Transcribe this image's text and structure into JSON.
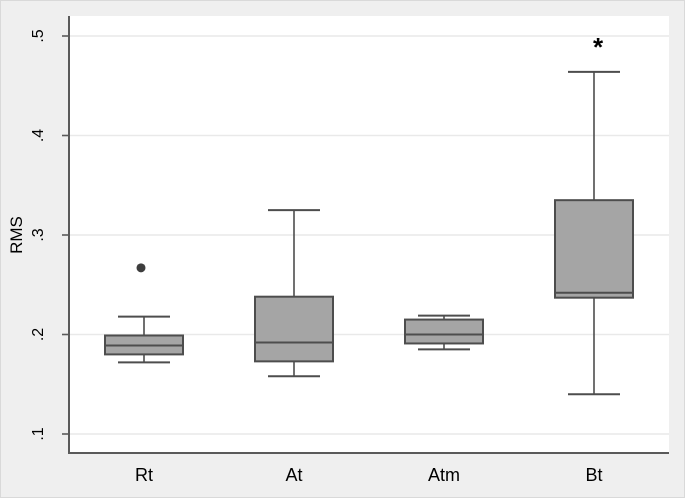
{
  "chart_data": {
    "type": "box",
    "title": "",
    "xlabel": "",
    "ylabel": "RMS",
    "ylim": [
      0.1,
      0.5
    ],
    "yticks": [
      0.1,
      0.2,
      0.3,
      0.4,
      0.5
    ],
    "ytick_labels": [
      ".1",
      ".2",
      ".3",
      ".4",
      ".5"
    ],
    "categories": [
      "Rt",
      "At",
      "Atm",
      "Bt"
    ],
    "boxes": [
      {
        "category": "Rt",
        "lower_whisker": 0.172,
        "q1": 0.18,
        "median": 0.189,
        "q3": 0.199,
        "upper_whisker": 0.218,
        "outliers": [
          0.267
        ]
      },
      {
        "category": "At",
        "lower_whisker": 0.158,
        "q1": 0.173,
        "median": 0.192,
        "q3": 0.238,
        "upper_whisker": 0.325,
        "outliers": []
      },
      {
        "category": "Atm",
        "lower_whisker": 0.185,
        "q1": 0.191,
        "median": 0.2,
        "q3": 0.215,
        "upper_whisker": 0.219,
        "outliers": []
      },
      {
        "category": "Bt",
        "lower_whisker": 0.14,
        "q1": 0.237,
        "median": 0.242,
        "q3": 0.335,
        "upper_whisker": 0.464,
        "outliers": []
      }
    ],
    "annotations": [
      {
        "category": "Bt",
        "text": "*",
        "value": 0.487
      }
    ],
    "grid": "horizontal",
    "legend": "none",
    "colors": {
      "figure_bg": "#efefef",
      "plot_bg": "#ffffff",
      "grid_line": "#e9e9e9",
      "axis_line": "#5a5a5a",
      "box_fill": "#a5a5a5",
      "box_border": "#4d4d4d",
      "whisker": "#4d4d4d",
      "outlier_dot": "#3d3d3d",
      "text": "#000000"
    }
  }
}
